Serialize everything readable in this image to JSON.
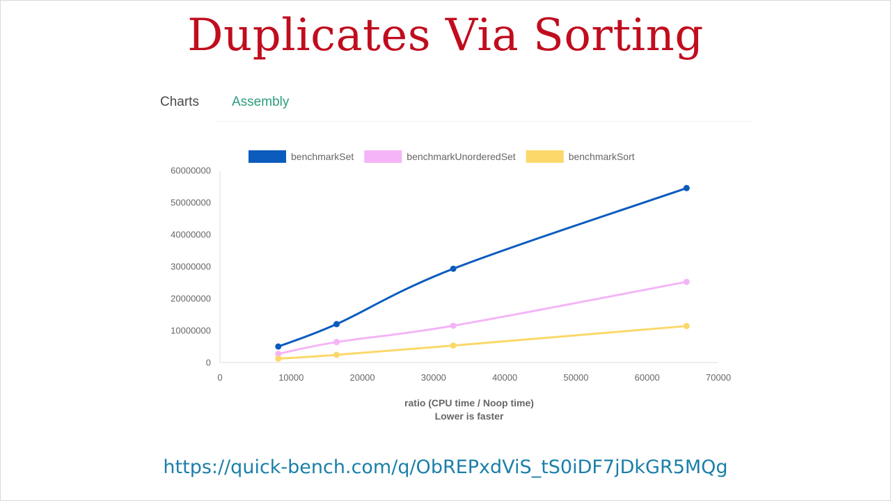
{
  "slide": {
    "title": "Duplicates Via Sorting",
    "url": "https://quick-bench.com/q/ObREPxdViS_tS0iDF7jDkGR5MQg"
  },
  "tabs": [
    {
      "label": "Charts",
      "color": "#4a4a4a"
    },
    {
      "label": "Assembly",
      "color": "#2e9b7f"
    }
  ],
  "chart_data": {
    "type": "line",
    "title": "",
    "xlabel": "ratio (CPU time / Noop time)",
    "xlabel_sub": "Lower is faster",
    "ylabel": "",
    "xlim": [
      0,
      70000
    ],
    "ylim": [
      0,
      60000000
    ],
    "x_ticks": [
      0,
      10000,
      20000,
      30000,
      40000,
      50000,
      60000,
      70000
    ],
    "y_ticks": [
      0,
      10000000,
      20000000,
      30000000,
      40000000,
      50000000,
      60000000
    ],
    "legend_position": "top",
    "grid": false,
    "x": [
      8192,
      16384,
      32768,
      65536
    ],
    "series": [
      {
        "name": "benchmarkSet",
        "color": "#0b5bbd",
        "values": [
          5000000,
          12000000,
          29300000,
          54500000
        ]
      },
      {
        "name": "benchmarkUnorderedSet",
        "color": "#f5b4f7",
        "values": [
          2700000,
          6400000,
          11500000,
          25200000
        ]
      },
      {
        "name": "benchmarkSort",
        "color": "#fcd86a",
        "values": [
          1200000,
          2400000,
          5300000,
          11400000
        ]
      }
    ]
  }
}
